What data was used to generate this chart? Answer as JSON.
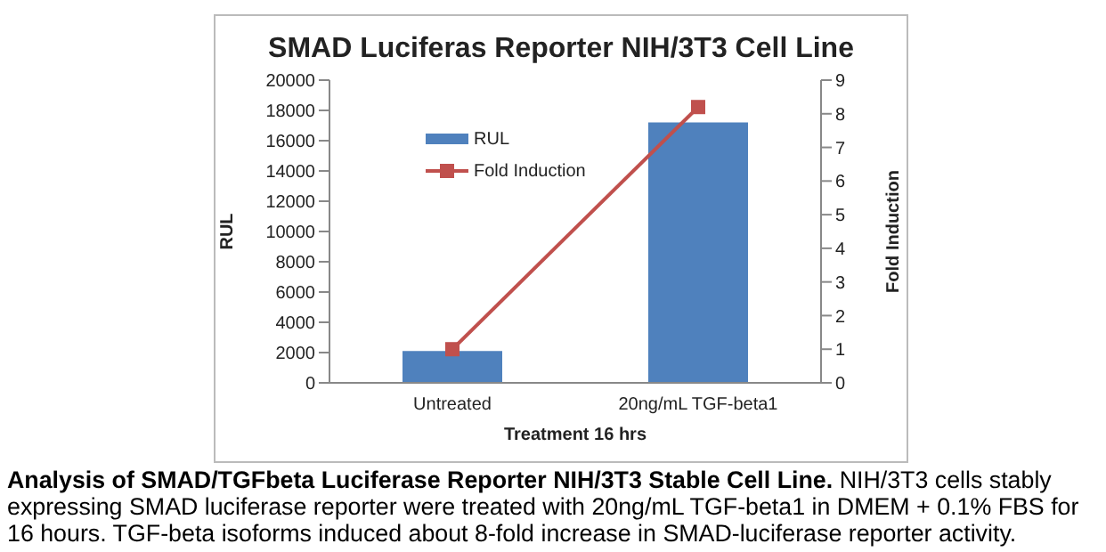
{
  "chart_data": {
    "type": "bar",
    "title": "SMAD Luciferas Reporter NIH/3T3 Cell Line",
    "xlabel": "Treatment 16 hrs",
    "ylabel": "RUL",
    "y2label": "Fold Induction",
    "categories": [
      "Untreated",
      "20ng/mL TGF-beta1"
    ],
    "series": [
      {
        "name": "RUL",
        "color": "#4f81bd",
        "values": [
          2100,
          17200
        ]
      },
      {
        "name": "Fold Induction",
        "type": "line",
        "axis": "y2",
        "color": "#c0504d",
        "marker": "square",
        "values": [
          1,
          8.2
        ]
      }
    ],
    "ylim": [
      0,
      20000
    ],
    "yticks": [
      0,
      2000,
      4000,
      6000,
      8000,
      10000,
      12000,
      14000,
      16000,
      18000,
      20000
    ],
    "y2lim": [
      0,
      9
    ],
    "y2ticks": [
      0,
      1,
      2,
      3,
      4,
      5,
      6,
      7,
      8,
      9
    ],
    "grid": false,
    "legend": "top left",
    "annotations": [
      "Analysis of SMAD/TGFbeta Luciferase Reporter NIH/3T3 Stable Cell Line.",
      "NIH/3T3 cells stably expressing SMAD luciferase reporter were treated with 20ng/mL TGF-beta1 in DMEM + 0.1% FBS for 16 hours. TGF-beta isoforms induced about 8-fold increase in SMAD-luciferase reporter activity."
    ]
  }
}
